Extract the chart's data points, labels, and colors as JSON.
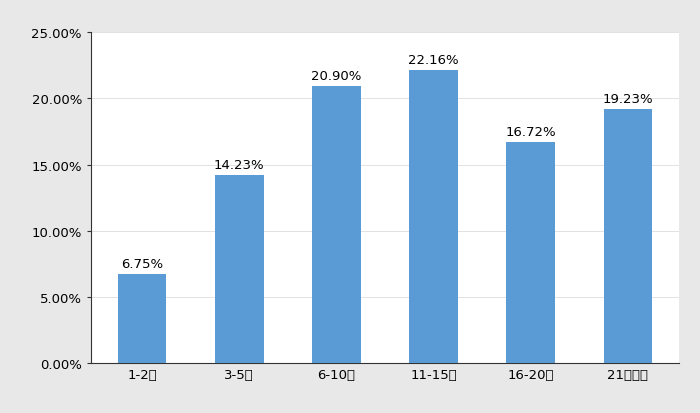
{
  "categories": [
    "1-2年",
    "3-5年",
    "6-10年",
    "11-15年",
    "16-20年",
    "21年以上"
  ],
  "values": [
    0.0675,
    0.1423,
    0.209,
    0.2216,
    0.1672,
    0.1923
  ],
  "labels": [
    "6.75%",
    "14.23%",
    "20.90%",
    "22.16%",
    "16.72%",
    "19.23%"
  ],
  "bar_color": "#5b9bd5",
  "ylim": [
    0,
    0.25
  ],
  "yticks": [
    0.0,
    0.05,
    0.1,
    0.15,
    0.2,
    0.25
  ],
  "ytick_labels": [
    "0.00%",
    "5.00%",
    "10.00%",
    "15.00%",
    "20.00%",
    "25.00%"
  ],
  "background_color": "#ffffff",
  "outer_background": "#f0f0f0",
  "label_fontsize": 9.5,
  "tick_fontsize": 9.5,
  "bar_width": 0.5
}
